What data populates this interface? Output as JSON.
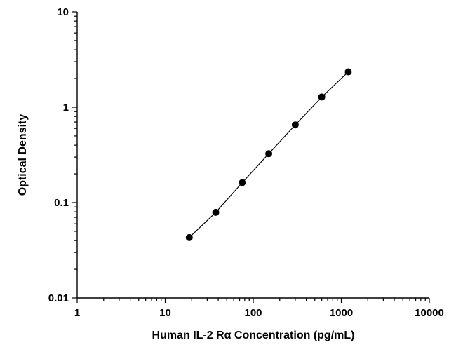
{
  "chart_data": {
    "type": "scatter",
    "title": "",
    "xlabel": "Human IL-2 Rα Concentration (pg/mL)",
    "ylabel": "Optical Density",
    "x_scale": "log",
    "y_scale": "log",
    "xlim": [
      1,
      10000
    ],
    "ylim": [
      0.01,
      10
    ],
    "x_ticks": [
      1,
      10,
      100,
      1000,
      10000
    ],
    "x_tick_labels": [
      "1",
      "10",
      "100",
      "1000",
      "10000"
    ],
    "y_ticks": [
      0.01,
      0.1,
      1,
      10
    ],
    "y_tick_labels": [
      "0.01",
      "0.1",
      "1",
      "10"
    ],
    "grid": false,
    "legend": "none",
    "connect_points": true,
    "marker": "filled-circle",
    "color": "#000000",
    "series": [
      {
        "x": [
          18.75,
          37.5,
          75,
          150,
          300,
          600,
          1200
        ],
        "y": [
          0.043,
          0.079,
          0.162,
          0.326,
          0.652,
          1.28,
          2.35
        ]
      }
    ]
  }
}
